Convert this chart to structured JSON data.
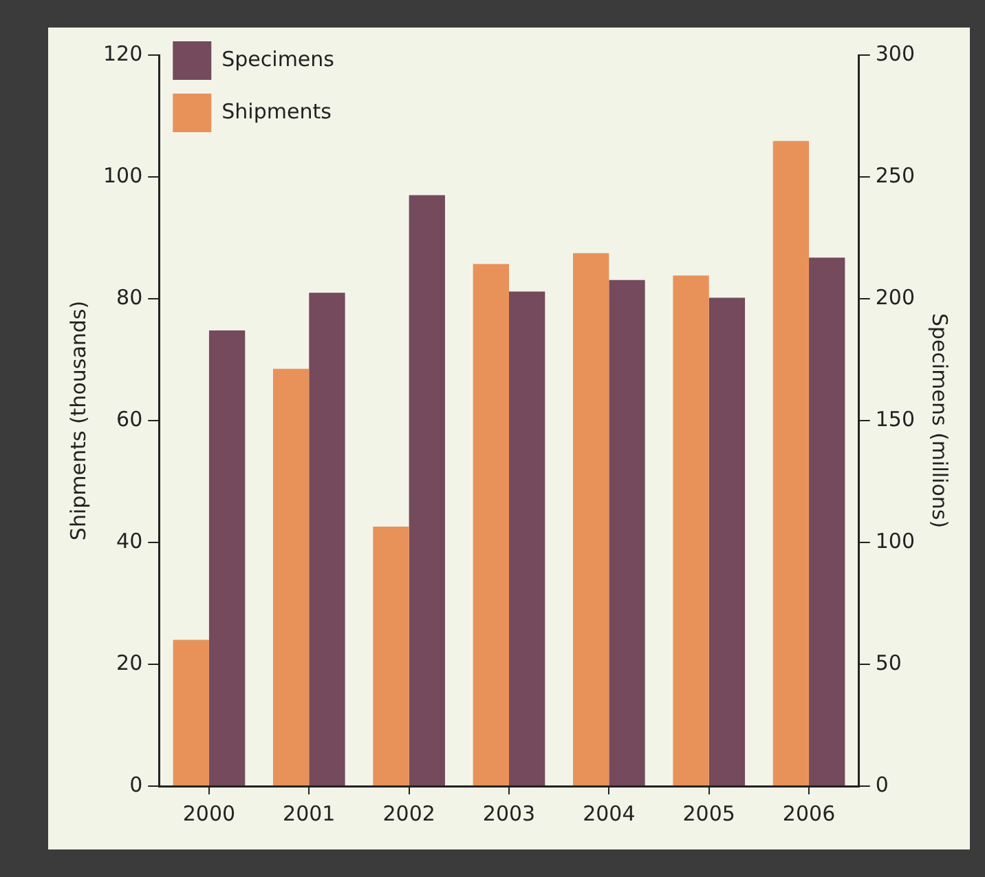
{
  "chart_data": {
    "type": "bar",
    "ylabel": "Shipments (thousands)",
    "y2label": "Specimens (millions)",
    "categories": [
      "2000",
      "2001",
      "2002",
      "2003",
      "2004",
      "2005",
      "2006"
    ],
    "series": [
      {
        "name": "Shipments",
        "color": "#e8925a",
        "values": [
          24,
          68.5,
          42.6,
          85.7,
          87.5,
          83.8,
          105.9
        ]
      },
      {
        "name": "Specimens",
        "color": "#744a5c",
        "axis": "y2",
        "values": [
          187,
          202.5,
          242.5,
          203,
          207.7,
          200.4,
          216.9
        ]
      }
    ],
    "ylim": [
      0,
      120
    ],
    "yticks": [
      0,
      20,
      40,
      60,
      80,
      100,
      120
    ],
    "y2lim": [
      0,
      300
    ],
    "y2ticks": [
      0,
      50,
      100,
      150,
      200,
      250,
      300
    ],
    "grid": false,
    "legend": "top left"
  }
}
